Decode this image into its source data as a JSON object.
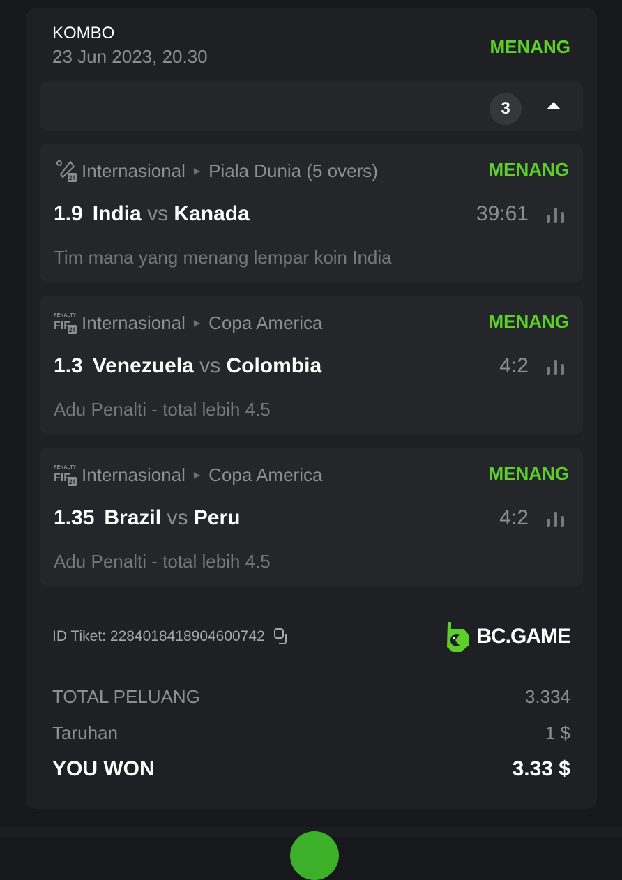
{
  "header": {
    "title": "KOMBO",
    "date": "23 Jun 2023, 20.30",
    "status": "MENANG"
  },
  "collapse": {
    "count": "3",
    "icon": "caret-up-icon"
  },
  "legs": [
    {
      "icon": "cricket-24-icon",
      "category": "Internasional",
      "league": "Piala Dunia (5 overs)",
      "status": "MENANG",
      "odds": "1.9",
      "home": "India",
      "vs": "vs",
      "away": "Kanada",
      "score": "39:61",
      "market": "Tim mana yang menang lempar koin India"
    },
    {
      "icon": "penalty-fifa-24-icon",
      "category": "Internasional",
      "league": "Copa America",
      "status": "MENANG",
      "odds": "1.3",
      "home": "Venezuela",
      "vs": "vs",
      "away": "Colombia",
      "score": "4:2",
      "market": "Adu Penalti - total lebih 4.5"
    },
    {
      "icon": "penalty-fifa-24-icon",
      "category": "Internasional",
      "league": "Copa America",
      "status": "MENANG",
      "odds": "1.35",
      "home": "Brazil",
      "vs": "vs",
      "away": "Peru",
      "score": "4:2",
      "market": "Adu Penalti - total lebih 4.5"
    }
  ],
  "ticket": {
    "label": "ID Tiket: 2284018418904600742",
    "brand": "BC.GAME"
  },
  "summary": {
    "odds_label": "TOTAL PELUANG",
    "odds_value": "3.334",
    "stake_label": "Taruhan",
    "stake_value": "1 $",
    "won_label": "YOU WON",
    "won_value": "3.33 $"
  },
  "colors": {
    "accent": "#5ccf2a",
    "card": "#1f2023",
    "leg": "#25262a",
    "background": "#17181b"
  }
}
